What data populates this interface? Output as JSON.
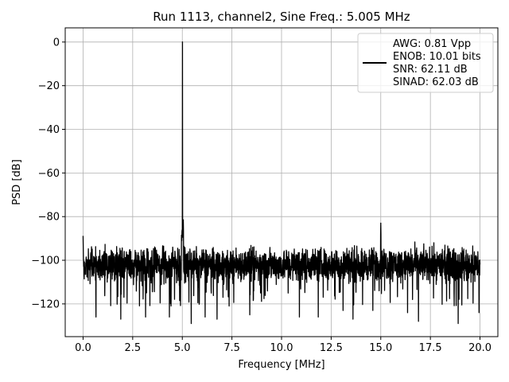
{
  "chart_data": {
    "type": "line",
    "title": "Run 1113, channel2, Sine Freq.: 5.005 MHz",
    "xlabel": "Frequency [MHz]",
    "ylabel": "PSD [dB]",
    "xlim": [
      -0.9,
      20.9
    ],
    "ylim": [
      -135,
      6.5
    ],
    "xticks": [
      0.0,
      2.5,
      5.0,
      7.5,
      10.0,
      12.5,
      15.0,
      17.5,
      20.0
    ],
    "xtick_labels": [
      "0.0",
      "2.5",
      "5.0",
      "7.5",
      "10.0",
      "12.5",
      "15.0",
      "17.5",
      "20.0"
    ],
    "yticks": [
      0,
      -20,
      -40,
      -60,
      -80,
      -100,
      -120
    ],
    "ytick_labels": [
      "0",
      "−20",
      "−40",
      "−60",
      "−80",
      "−100",
      "−120"
    ],
    "grid": true,
    "legend": {
      "placement": "top-right",
      "lines": [
        "AWG: 0.81 Vpp",
        "ENOB: 10.01 bits",
        "SNR: 62.11 dB",
        "SINAD: 62.03 dB"
      ]
    },
    "series": [
      {
        "color": "#000000",
        "noise_floor_db": -102,
        "noise_band_db": [
          -113,
          -91
        ],
        "noise_min_db": -129,
        "x_range": [
          0.0,
          20.0
        ],
        "peaks": [
          {
            "x": 5.005,
            "y": 0.0
          },
          {
            "x": 5.05,
            "y": -81.5
          },
          {
            "x": 15.0,
            "y": -83.0
          },
          {
            "x": 0.0,
            "y": -89.0
          }
        ],
        "dips": [
          {
            "x": 0.65,
            "y": -126
          },
          {
            "x": 1.9,
            "y": -127
          },
          {
            "x": 3.15,
            "y": -126
          },
          {
            "x": 4.35,
            "y": -126
          },
          {
            "x": 5.45,
            "y": -129
          },
          {
            "x": 6.15,
            "y": -126
          },
          {
            "x": 6.75,
            "y": -127
          },
          {
            "x": 8.4,
            "y": -125
          },
          {
            "x": 10.9,
            "y": -126
          },
          {
            "x": 11.85,
            "y": -126
          },
          {
            "x": 13.1,
            "y": -123
          },
          {
            "x": 13.6,
            "y": -127
          },
          {
            "x": 14.6,
            "y": -123
          },
          {
            "x": 16.35,
            "y": -124
          },
          {
            "x": 16.9,
            "y": -128
          },
          {
            "x": 18.9,
            "y": -129
          },
          {
            "x": 19.95,
            "y": -124
          }
        ]
      }
    ]
  }
}
